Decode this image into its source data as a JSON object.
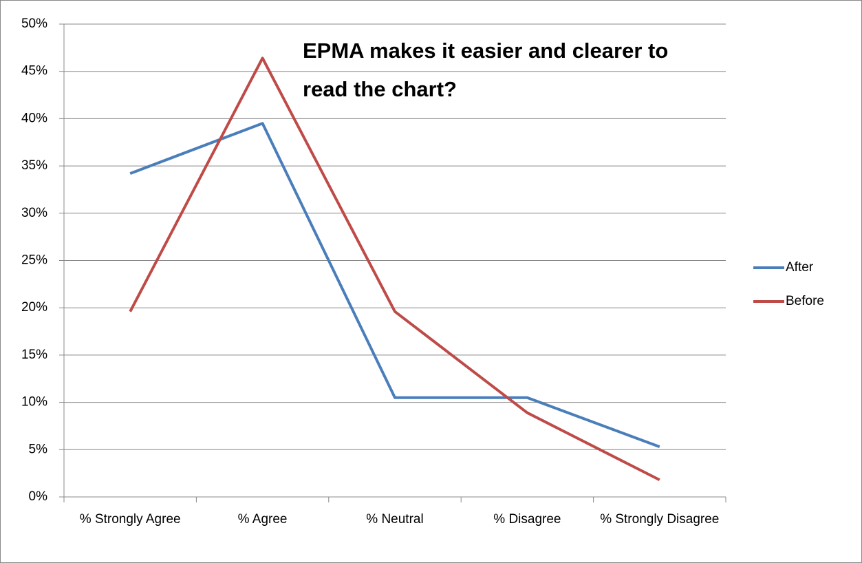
{
  "chart_data": {
    "type": "line",
    "title": "EPMA makes it easier and clearer to read the chart?",
    "categories": [
      "% Strongly Agree",
      "% Agree",
      "% Neutral",
      "% Disagree",
      "% Strongly Disagree"
    ],
    "series": [
      {
        "name": "After",
        "color": "#4a7ebb",
        "values": [
          34.2,
          39.5,
          10.5,
          10.5,
          5.3
        ]
      },
      {
        "name": "Before",
        "color": "#be4b48",
        "values": [
          19.6,
          46.4,
          19.6,
          8.9,
          1.8
        ]
      }
    ],
    "ylim": [
      0,
      50
    ],
    "yticks": [
      {
        "value": 0,
        "label": "0%"
      },
      {
        "value": 5,
        "label": "5%"
      },
      {
        "value": 10,
        "label": "10%"
      },
      {
        "value": 15,
        "label": "15%"
      },
      {
        "value": 20,
        "label": "20%"
      },
      {
        "value": 25,
        "label": "25%"
      },
      {
        "value": 30,
        "label": "30%"
      },
      {
        "value": 35,
        "label": "35%"
      },
      {
        "value": 40,
        "label": "40%"
      },
      {
        "value": 45,
        "label": "45%"
      },
      {
        "value": 50,
        "label": "50%"
      }
    ],
    "grid": true,
    "legend": "right"
  }
}
